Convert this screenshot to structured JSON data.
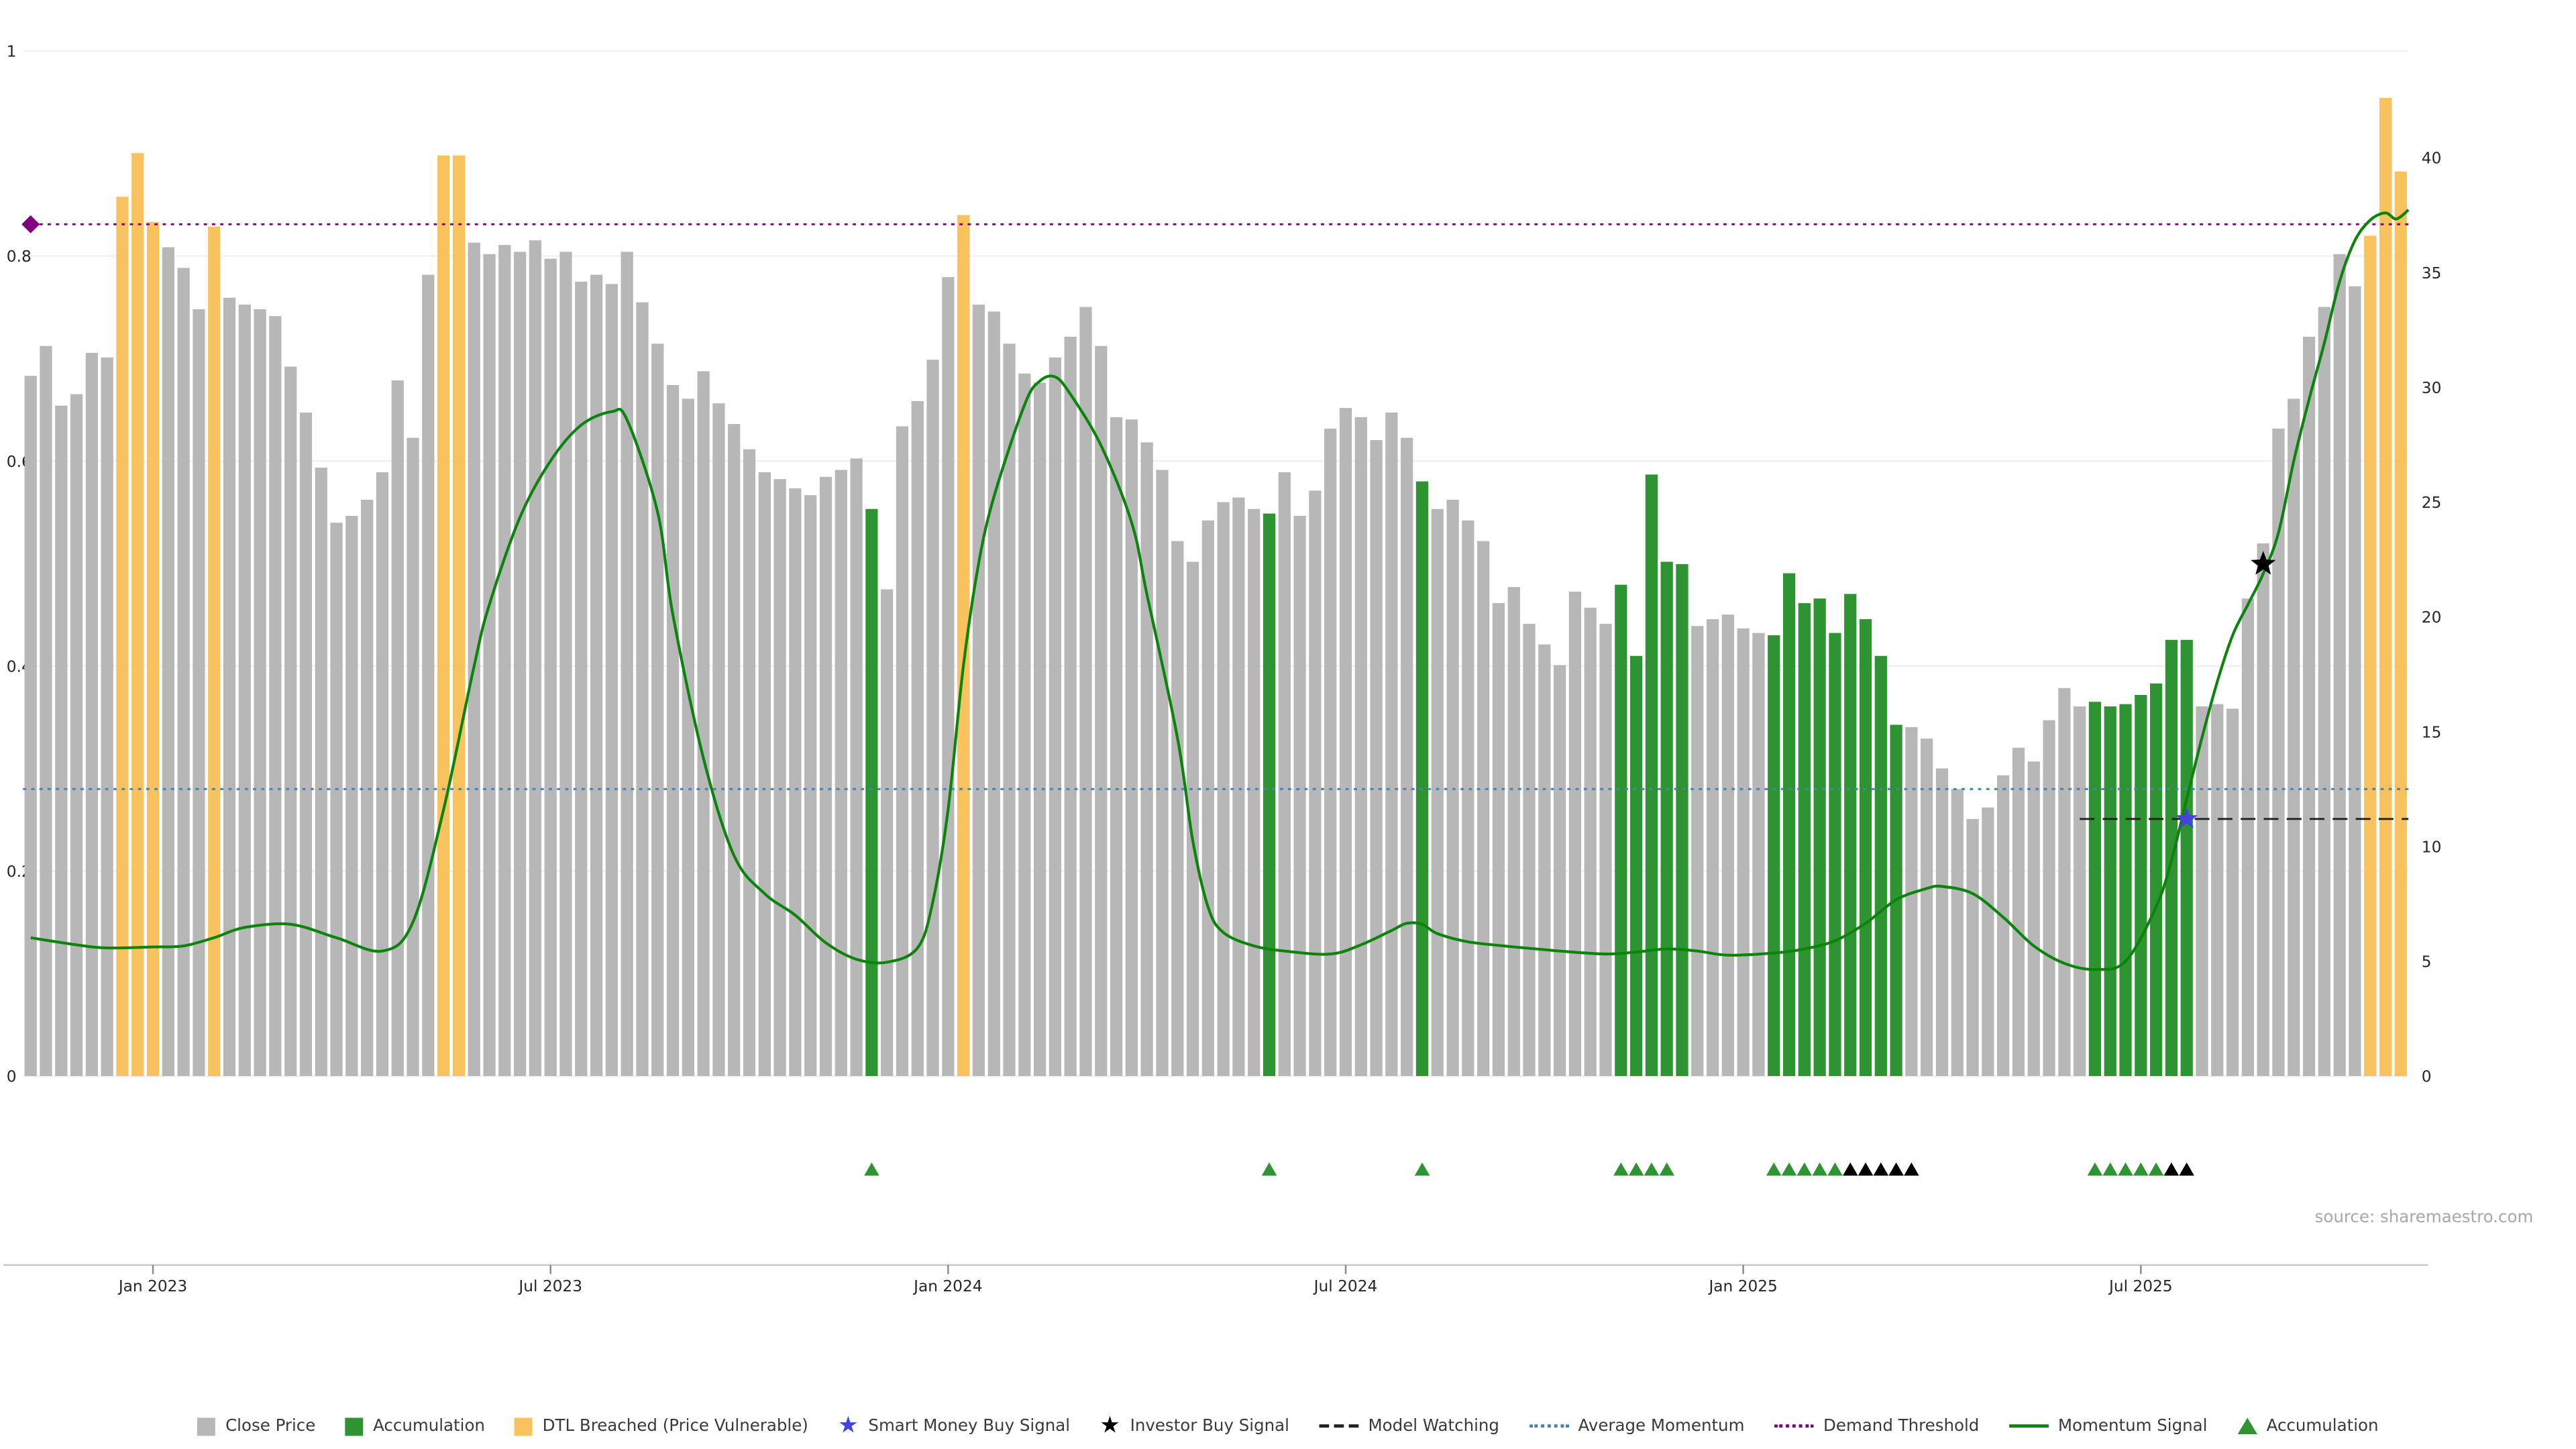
{
  "source": "source: sharemaestro.com",
  "colors": {
    "close_price": "#b7b7b7",
    "accumulation": "#2e9331",
    "dtl_breached": "#f8c35e",
    "momentum_line": "#0b840b",
    "demand_threshold": "#800080",
    "average_momentum": "#4682b4",
    "model_watching": "#222222",
    "smart_money_star": "#4343e0",
    "investor_star": "#000000",
    "grid": "#f0f0f0",
    "axis_text": "#262626",
    "axis_line": "#c9c9c9",
    "tick_mark": "#8a8a8a"
  },
  "chart_data": {
    "type": "bar",
    "title": "",
    "xlabel": "",
    "ylabel": "",
    "x_ticks": [
      {
        "index": 8,
        "label": "Jan 2023"
      },
      {
        "index": 34,
        "label": "Jul 2023"
      },
      {
        "index": 60,
        "label": "Jan 2024"
      },
      {
        "index": 86,
        "label": "Jul 2024"
      },
      {
        "index": 112,
        "label": "Jan 2025"
      },
      {
        "index": 138,
        "label": "Jul 2025"
      }
    ],
    "left_axis": {
      "min": 0,
      "max": 1,
      "ticks": [
        {
          "value": 0,
          "label": "0"
        },
        {
          "value": 0.2,
          "label": "0.2"
        },
        {
          "value": 0.4,
          "label": "0.4"
        },
        {
          "value": 0.6,
          "label": "0.6"
        },
        {
          "value": 0.8,
          "label": "0.8"
        },
        {
          "value": 1,
          "label": "1"
        }
      ]
    },
    "right_axis": {
      "min": 0,
      "max": 44.65,
      "ticks": [
        {
          "value": 0,
          "label": "0"
        },
        {
          "value": 5,
          "label": "5"
        },
        {
          "value": 10,
          "label": "10"
        },
        {
          "value": 15,
          "label": "15"
        },
        {
          "value": 20,
          "label": "20"
        },
        {
          "value": 25,
          "label": "25"
        },
        {
          "value": 30,
          "label": "30"
        },
        {
          "value": 35,
          "label": "35"
        },
        {
          "value": 40,
          "label": "40"
        }
      ]
    },
    "bars": {
      "label": "Close Price (weekly)",
      "color_meaning": {
        "g": "Close Price",
        "G": "Accumulation",
        "O": "DTL Breached (Price Vulnerable)"
      },
      "color_codes": "ggggggOOOgggOggggggggggggggOOggggggggggggggggggggggggggGgggggOgggggggggggggggggggGgggggggggGggggggggggggGGGGGgggggGGGGGGGGGggggggggggggGGGGGGGgggggggggggOOO",
      "values": [
        30.5,
        31.8,
        29.2,
        29.7,
        31.5,
        31.3,
        38.3,
        40.2,
        37.2,
        36.1,
        35.2,
        33.4,
        37.0,
        33.9,
        33.6,
        33.4,
        33.1,
        30.9,
        28.9,
        26.5,
        24.1,
        24.4,
        25.1,
        26.3,
        30.3,
        27.8,
        34.9,
        40.1,
        40.1,
        36.3,
        35.8,
        36.2,
        35.9,
        36.4,
        35.6,
        35.9,
        34.6,
        34.9,
        34.5,
        35.9,
        33.7,
        31.9,
        30.1,
        29.5,
        30.7,
        29.3,
        28.4,
        27.3,
        26.3,
        26.0,
        25.6,
        25.3,
        26.1,
        26.4,
        26.9,
        24.7,
        21.2,
        28.3,
        29.4,
        31.2,
        34.8,
        37.5,
        33.6,
        33.3,
        31.9,
        30.6,
        30.2,
        31.3,
        32.2,
        33.5,
        31.8,
        28.7,
        28.6,
        27.6,
        26.4,
        23.3,
        22.4,
        24.2,
        25.0,
        25.2,
        24.7,
        24.5,
        26.3,
        24.4,
        25.5,
        28.2,
        29.1,
        28.7,
        27.7,
        28.9,
        27.8,
        25.9,
        24.7,
        25.1,
        24.2,
        23.3,
        20.6,
        21.3,
        19.7,
        18.8,
        17.9,
        21.1,
        20.4,
        19.7,
        21.4,
        18.3,
        26.2,
        22.4,
        22.3,
        19.6,
        19.9,
        20.1,
        19.5,
        19.3,
        19.2,
        21.9,
        20.6,
        20.8,
        19.3,
        21.0,
        19.9,
        18.3,
        15.3,
        15.2,
        14.7,
        13.4,
        12.5,
        11.2,
        11.7,
        13.1,
        14.3,
        13.7,
        15.5,
        16.9,
        16.1,
        16.3,
        16.1,
        16.2,
        16.6,
        17.1,
        19.0,
        19.0,
        16.1,
        16.2,
        16.0,
        20.8,
        23.2,
        28.2,
        29.5,
        32.2,
        33.5,
        35.8,
        34.4,
        36.6,
        42.6,
        39.4
      ]
    },
    "momentum": {
      "label": "Momentum Signal",
      "axis": "left",
      "points": [
        [
          0,
          0.135
        ],
        [
          3,
          0.128
        ],
        [
          5,
          0.125
        ],
        [
          8,
          0.126
        ],
        [
          10,
          0.127
        ],
        [
          12,
          0.135
        ],
        [
          14,
          0.145
        ],
        [
          17,
          0.148
        ],
        [
          20,
          0.135
        ],
        [
          23,
          0.122
        ],
        [
          25,
          0.15
        ],
        [
          27,
          0.26
        ],
        [
          29,
          0.4
        ],
        [
          30,
          0.46
        ],
        [
          32,
          0.545
        ],
        [
          34,
          0.6
        ],
        [
          36,
          0.635
        ],
        [
          38,
          0.648
        ],
        [
          39,
          0.64
        ],
        [
          41,
          0.55
        ],
        [
          42,
          0.45
        ],
        [
          44,
          0.31
        ],
        [
          46,
          0.215
        ],
        [
          48,
          0.178
        ],
        [
          50,
          0.157
        ],
        [
          52,
          0.13
        ],
        [
          54,
          0.114
        ],
        [
          56,
          0.111
        ],
        [
          58,
          0.125
        ],
        [
          59,
          0.17
        ],
        [
          60,
          0.26
        ],
        [
          61,
          0.4
        ],
        [
          62,
          0.5
        ],
        [
          63,
          0.565
        ],
        [
          65,
          0.655
        ],
        [
          66,
          0.678
        ],
        [
          67,
          0.682
        ],
        [
          68,
          0.665
        ],
        [
          70,
          0.615
        ],
        [
          72,
          0.54
        ],
        [
          73,
          0.47
        ],
        [
          75,
          0.33
        ],
        [
          76,
          0.23
        ],
        [
          77,
          0.165
        ],
        [
          78,
          0.14
        ],
        [
          80,
          0.127
        ],
        [
          82,
          0.122
        ],
        [
          85,
          0.119
        ],
        [
          87,
          0.128
        ],
        [
          89,
          0.142
        ],
        [
          90,
          0.149
        ],
        [
          91,
          0.148
        ],
        [
          92,
          0.139
        ],
        [
          94,
          0.131
        ],
        [
          97,
          0.126
        ],
        [
          100,
          0.122
        ],
        [
          103,
          0.119
        ],
        [
          105,
          0.121
        ],
        [
          107,
          0.124
        ],
        [
          109,
          0.122
        ],
        [
          111,
          0.118
        ],
        [
          114,
          0.12
        ],
        [
          116,
          0.124
        ],
        [
          118,
          0.132
        ],
        [
          120,
          0.149
        ],
        [
          122,
          0.172
        ],
        [
          124,
          0.183
        ],
        [
          125,
          0.185
        ],
        [
          127,
          0.178
        ],
        [
          129,
          0.155
        ],
        [
          131,
          0.127
        ],
        [
          133,
          0.11
        ],
        [
          135,
          0.104
        ],
        [
          137,
          0.112
        ],
        [
          139,
          0.165
        ],
        [
          140,
          0.21
        ],
        [
          141,
          0.27
        ],
        [
          142,
          0.33
        ],
        [
          143,
          0.385
        ],
        [
          144,
          0.43
        ],
        [
          145,
          0.46
        ],
        [
          146,
          0.49
        ],
        [
          147,
          0.53
        ],
        [
          148,
          0.6
        ],
        [
          149,
          0.66
        ],
        [
          150,
          0.715
        ],
        [
          151,
          0.775
        ],
        [
          152,
          0.815
        ],
        [
          153,
          0.835
        ],
        [
          154,
          0.842
        ],
        [
          154.7,
          0.836
        ],
        [
          155.5,
          0.845
        ]
      ]
    },
    "hlines": [
      {
        "name": "Demand Threshold",
        "axis": "right",
        "value": 37.1,
        "style": "dotted",
        "color_key": "demand_threshold"
      },
      {
        "name": "Average Momentum",
        "axis": "left",
        "value": 0.28,
        "style": "dotted",
        "color_key": "average_momentum"
      },
      {
        "name": "Model Watching",
        "axis": "right",
        "value": 11.2,
        "style": "dashed",
        "color_key": "model_watching",
        "from_index": 134,
        "to_index": 156
      }
    ],
    "markers": [
      {
        "name": "demand-threshold-marker",
        "shape": "diamond",
        "index": 0,
        "axis": "right",
        "value": 37.1,
        "color_key": "demand_threshold"
      },
      {
        "name": "smart-money-buy-signal",
        "shape": "star",
        "index": 141,
        "axis": "right",
        "value": 11.2,
        "color_key": "smart_money_star"
      },
      {
        "name": "investor-buy-signal",
        "shape": "star",
        "index": 146,
        "axis": "right",
        "value": 22.3,
        "color_key": "investor_star"
      }
    ],
    "signal_row": {
      "green_triangles": [
        55,
        81,
        91,
        104,
        105,
        106,
        107,
        114,
        115,
        116,
        117,
        118,
        135,
        136,
        137,
        138,
        139
      ],
      "black_triangles": [
        119,
        120,
        121,
        122,
        123,
        140,
        141
      ]
    }
  },
  "legend": {
    "items": [
      {
        "label": "Close Price",
        "type": "square",
        "color_key": "close_price"
      },
      {
        "label": "Accumulation",
        "type": "square",
        "color_key": "accumulation"
      },
      {
        "label": "DTL Breached (Price Vulnerable)",
        "type": "square",
        "color_key": "dtl_breached"
      },
      {
        "label": "Smart Money Buy Signal",
        "type": "star",
        "color_key": "smart_money_star"
      },
      {
        "label": "Investor Buy Signal",
        "type": "star",
        "color_key": "investor_star"
      },
      {
        "label": "Model Watching",
        "type": "dashed-line",
        "color_key": "model_watching"
      },
      {
        "label": "Average Momentum",
        "type": "dotted-line",
        "color_key": "average_momentum"
      },
      {
        "label": "Demand Threshold",
        "type": "dotted-line",
        "color_key": "demand_threshold"
      },
      {
        "label": "Momentum Signal",
        "type": "solid-line",
        "color_key": "momentum_line"
      },
      {
        "label": "Accumulation",
        "type": "triangle",
        "color_key": "accumulation"
      }
    ]
  }
}
